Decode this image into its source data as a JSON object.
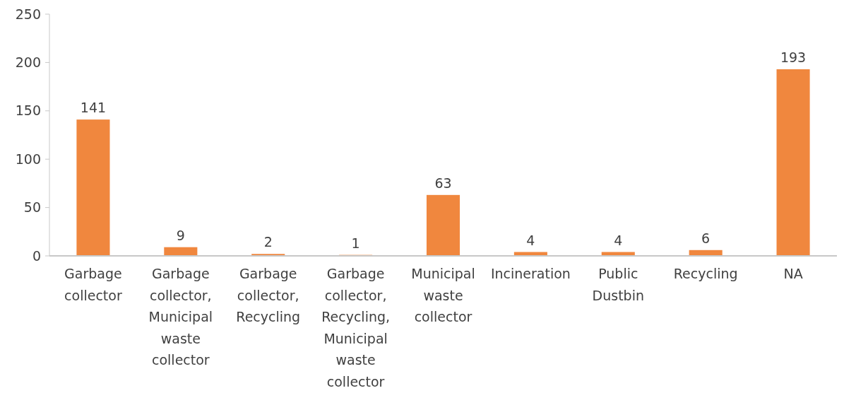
{
  "chart_data": {
    "type": "bar",
    "categories": [
      "Garbage collector",
      "Garbage collector, Municipal waste collector",
      "Garbage collector, Recycling",
      "Garbage collector, Recycling, Municipal waste collector",
      "Municipal waste collector",
      "Incineration",
      "Public Dustbin",
      "Recycling",
      "NA"
    ],
    "values": [
      141,
      9,
      2,
      1,
      63,
      4,
      4,
      6,
      193
    ],
    "color": "#f0873e",
    "ylim": [
      0,
      250
    ],
    "yticks": [
      0,
      50,
      100,
      150,
      200,
      250
    ],
    "data_labels": true,
    "grid": false
  }
}
